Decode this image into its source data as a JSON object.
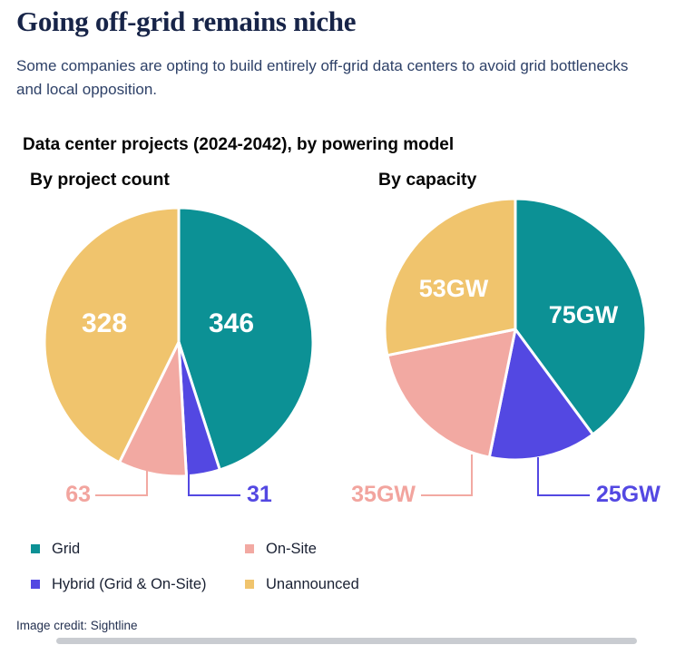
{
  "header": {
    "title": "Going off-grid remains niche",
    "subtitle": "Some companies are opting to build entirely off-grid data centers to avoid grid bottlenecks and local opposition."
  },
  "figure": {
    "title": "Data center projects (2024-2042), by powering model",
    "left_heading": "By project count",
    "right_heading": "By capacity",
    "left_labels": {
      "grid": "346",
      "unannounced": "328",
      "on_site": "63",
      "hybrid": "31"
    },
    "right_labels": {
      "grid": "75GW",
      "unannounced": "53GW",
      "on_site": "35GW",
      "hybrid": "25GW"
    }
  },
  "legend": {
    "items": [
      {
        "label": "Grid",
        "color": "#0C9195"
      },
      {
        "label": "On-Site",
        "color": "#F2A9A2"
      },
      {
        "label": "Hybrid (Grid & On-Site)",
        "color": "#5348E2"
      },
      {
        "label": "Unannounced",
        "color": "#F0C46D"
      }
    ]
  },
  "colors": {
    "grid": "#0C9195",
    "on_site": "#F2A9A2",
    "hybrid": "#5348E2",
    "unannounced": "#F0C46D",
    "title_navy": "#172448"
  },
  "credit": "Image credit: Sightline",
  "chart_data": [
    {
      "type": "pie",
      "title": "By project count",
      "start_angle_deg": -90,
      "direction": "clockwise",
      "total": 768,
      "slices": [
        {
          "label": "Grid",
          "value": 346,
          "color": "#0C9195"
        },
        {
          "label": "Hybrid (Grid & On-Site)",
          "value": 31,
          "color": "#5348E2"
        },
        {
          "label": "On-Site",
          "value": 63,
          "color": "#F2A9A2"
        },
        {
          "label": "Unannounced",
          "value": 328,
          "color": "#F0C46D"
        }
      ]
    },
    {
      "type": "pie",
      "title": "By capacity",
      "unit": "GW",
      "start_angle_deg": -90,
      "direction": "clockwise",
      "total": 188,
      "slices": [
        {
          "label": "Grid",
          "value": 75,
          "color": "#0C9195"
        },
        {
          "label": "Hybrid (Grid & On-Site)",
          "value": 25,
          "color": "#5348E2"
        },
        {
          "label": "On-Site",
          "value": 35,
          "color": "#F2A9A2"
        },
        {
          "label": "Unannounced",
          "value": 53,
          "color": "#F0C46D"
        }
      ]
    }
  ]
}
